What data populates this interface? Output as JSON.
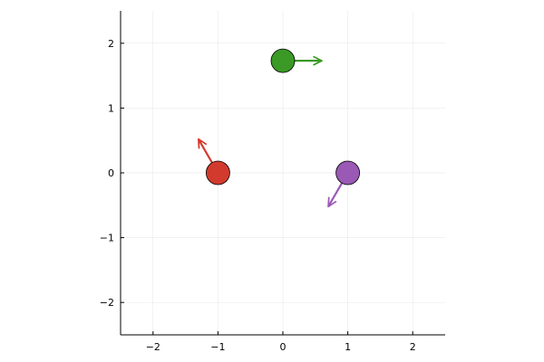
{
  "chart_data": {
    "type": "scatter",
    "title": "",
    "xlabel": "",
    "ylabel": "",
    "xlim": [
      -2.5,
      2.5
    ],
    "ylim": [
      -2.5,
      2.5
    ],
    "grid": true,
    "legend": "none",
    "x_ticks": [
      {
        "value": -2,
        "label": "−2"
      },
      {
        "value": -1,
        "label": "−1"
      },
      {
        "value": 0,
        "label": "0"
      },
      {
        "value": 1,
        "label": "1"
      },
      {
        "value": 2,
        "label": "2"
      }
    ],
    "y_ticks": [
      {
        "value": -2,
        "label": "−2"
      },
      {
        "value": -1,
        "label": "−1"
      },
      {
        "value": 0,
        "label": "0"
      },
      {
        "value": 1,
        "label": "1"
      },
      {
        "value": 2,
        "label": "2"
      }
    ],
    "points": [
      {
        "x": 0,
        "y": 1.73,
        "dx": 0.6,
        "dy": 0,
        "color": "#3a9a25"
      },
      {
        "x": -1,
        "y": 0,
        "dx": -0.3,
        "dy": 0.52,
        "color": "#d23a2e"
      },
      {
        "x": 1,
        "y": 0,
        "dx": -0.3,
        "dy": -0.52,
        "color": "#9a59b5"
      }
    ]
  }
}
